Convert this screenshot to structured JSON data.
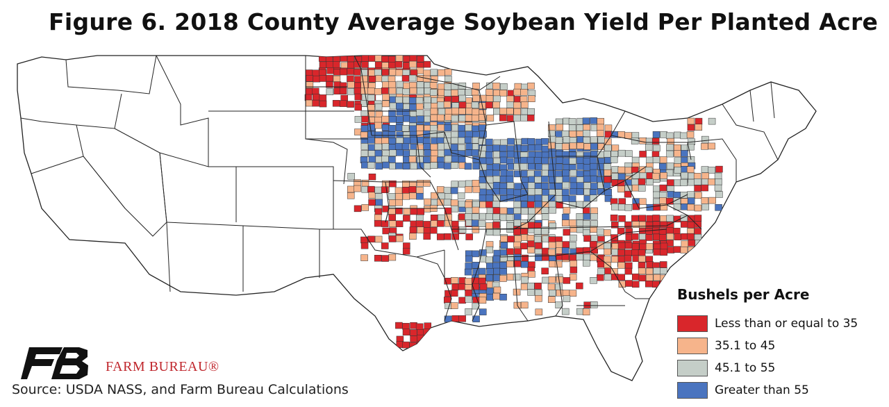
{
  "title": "Figure 6. 2018 County Average Soybean Yield Per Planted Acre",
  "legend": {
    "title": "Bushels per Acre",
    "items": [
      {
        "label": "Less than or equal to 35",
        "color": "#d9262b"
      },
      {
        "label": "35.1 to 45",
        "color": "#f6b48b"
      },
      {
        "label": "45.1 to 55",
        "color": "#c5cec8"
      },
      {
        "label": "Greater than 55",
        "color": "#4a74bf"
      }
    ]
  },
  "logo": {
    "name": "FARM BUREAU®",
    "icon": "farm-bureau-fb-logo"
  },
  "source": "Source: USDA NASS, and Farm Bureau Calculations"
}
